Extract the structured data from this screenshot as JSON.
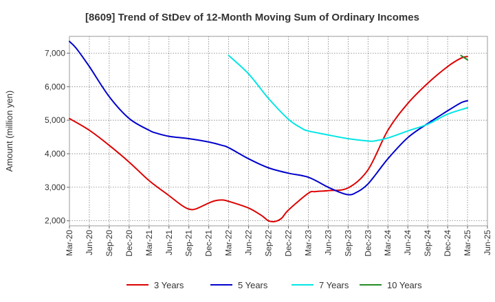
{
  "chart_data": {
    "type": "line",
    "title": "[8609]  Trend of StDev of 12-Month Moving Sum of Ordinary Incomes",
    "xlabel": "",
    "ylabel": "Amount (million yen)",
    "x_tick_labels": [
      "Mar-20",
      "Jun-20",
      "Sep-20",
      "Dec-20",
      "Mar-21",
      "Jun-21",
      "Sep-21",
      "Dec-21",
      "Mar-22",
      "Jun-22",
      "Sep-22",
      "Dec-22",
      "Mar-23",
      "Jun-23",
      "Sep-23",
      "Dec-23",
      "Mar-24",
      "Jun-24",
      "Sep-24",
      "Dec-24",
      "Mar-25",
      "Jun-25"
    ],
    "y_tick_labels": [
      "2,000",
      "3,000",
      "4,000",
      "5,000",
      "6,000",
      "7,000"
    ],
    "y_ticks": [
      2000,
      3000,
      4000,
      5000,
      6000,
      7000
    ],
    "ylim": [
      1850,
      7500
    ],
    "grid": true,
    "legend_position": "bottom",
    "series": [
      {
        "name": "3 Years",
        "color": "#dd0000",
        "x": [
          "Mar-20",
          "Jun-20",
          "Sep-20",
          "Dec-20",
          "Mar-21",
          "Jun-21",
          "Aug-21",
          "Sep-21",
          "Oct-21",
          "Dec-21",
          "Jan-22",
          "Feb-22",
          "Mar-22",
          "Jun-22",
          "Aug-22",
          "Sep-22",
          "Oct-22",
          "Nov-22",
          "Dec-22",
          "Mar-23",
          "Apr-23",
          "Jun-23",
          "Sep-23",
          "Dec-23",
          "Mar-24",
          "Jun-24",
          "Sep-24",
          "Dec-24",
          "Feb-25",
          "Mar-25"
        ],
        "values": [
          5050,
          4700,
          4250,
          3750,
          3200,
          2750,
          2450,
          2350,
          2350,
          2530,
          2600,
          2620,
          2580,
          2380,
          2150,
          2000,
          1980,
          2080,
          2320,
          2820,
          2870,
          2900,
          2980,
          3520,
          4700,
          5500,
          6100,
          6600,
          6850,
          6900
        ]
      },
      {
        "name": "5 Years",
        "color": "#0000cc",
        "x": [
          "Mar-20",
          "Apr-20",
          "Jun-20",
          "Sep-20",
          "Dec-20",
          "Mar-21",
          "Apr-21",
          "Jun-21",
          "Sep-21",
          "Dec-21",
          "Feb-22",
          "Mar-22",
          "Jun-22",
          "Sep-22",
          "Dec-22",
          "Mar-23",
          "Jun-23",
          "Aug-23",
          "Sep-23",
          "Oct-23",
          "Dec-23",
          "Mar-24",
          "Jun-24",
          "Sep-24",
          "Dec-24",
          "Feb-25",
          "Mar-25"
        ],
        "values": [
          7350,
          7150,
          6600,
          5700,
          5050,
          4700,
          4620,
          4520,
          4450,
          4350,
          4250,
          4180,
          3850,
          3580,
          3420,
          3300,
          3000,
          2830,
          2780,
          2820,
          3100,
          3850,
          4480,
          4900,
          5280,
          5520,
          5580
        ]
      },
      {
        "name": "7 Years",
        "color": "#00e5e5",
        "x": [
          "Mar-22",
          "Jun-22",
          "Sep-22",
          "Dec-22",
          "Feb-23",
          "Mar-23",
          "Jun-23",
          "Sep-23",
          "Dec-23",
          "Jan-24",
          "Mar-24",
          "Jun-24",
          "Sep-24",
          "Dec-24",
          "Mar-25"
        ],
        "values": [
          6930,
          6380,
          5650,
          5030,
          4760,
          4680,
          4560,
          4450,
          4380,
          4380,
          4470,
          4680,
          4880,
          5180,
          5370
        ]
      },
      {
        "name": "10 Years",
        "color": "#228b22",
        "x": [
          "Feb-25",
          "Mar-25"
        ],
        "values": [
          6930,
          6800
        ]
      }
    ]
  }
}
